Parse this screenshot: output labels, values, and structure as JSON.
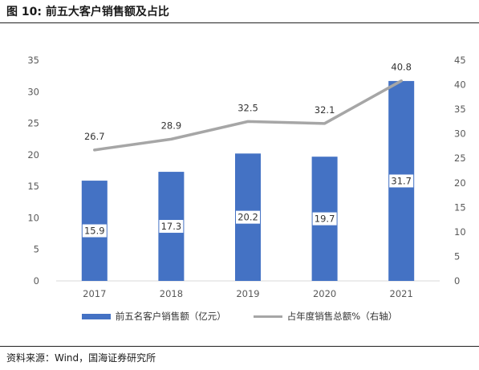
{
  "header": {
    "title": "图 10:  前五大客户销售额及占比"
  },
  "footer": {
    "source": "资料来源：Wind，国海证券研究所"
  },
  "colors": {
    "bar": "#4472c4",
    "line": "#a6a6a6",
    "rule": "#222222",
    "axis_text": "#595959"
  },
  "chart_data": {
    "type": "bar",
    "categories": [
      "2017",
      "2018",
      "2019",
      "2020",
      "2021"
    ],
    "series": [
      {
        "name": "前五名客户销售额（亿元）",
        "type": "bar",
        "axis": "left",
        "values": [
          15.9,
          17.3,
          20.2,
          19.7,
          31.7
        ]
      },
      {
        "name": "占年度销售总额%（右轴）",
        "type": "line",
        "axis": "right",
        "values": [
          26.7,
          28.9,
          32.5,
          32.1,
          40.8
        ]
      }
    ],
    "y_left": {
      "min": 0,
      "max": 35,
      "ticks": [
        0,
        5,
        10,
        15,
        20,
        25,
        30,
        35
      ]
    },
    "y_right": {
      "min": 0,
      "max": 45,
      "ticks": [
        0,
        5,
        10,
        15,
        20,
        25,
        30,
        35,
        40,
        45
      ]
    },
    "grid": false,
    "legend_position": "bottom"
  }
}
